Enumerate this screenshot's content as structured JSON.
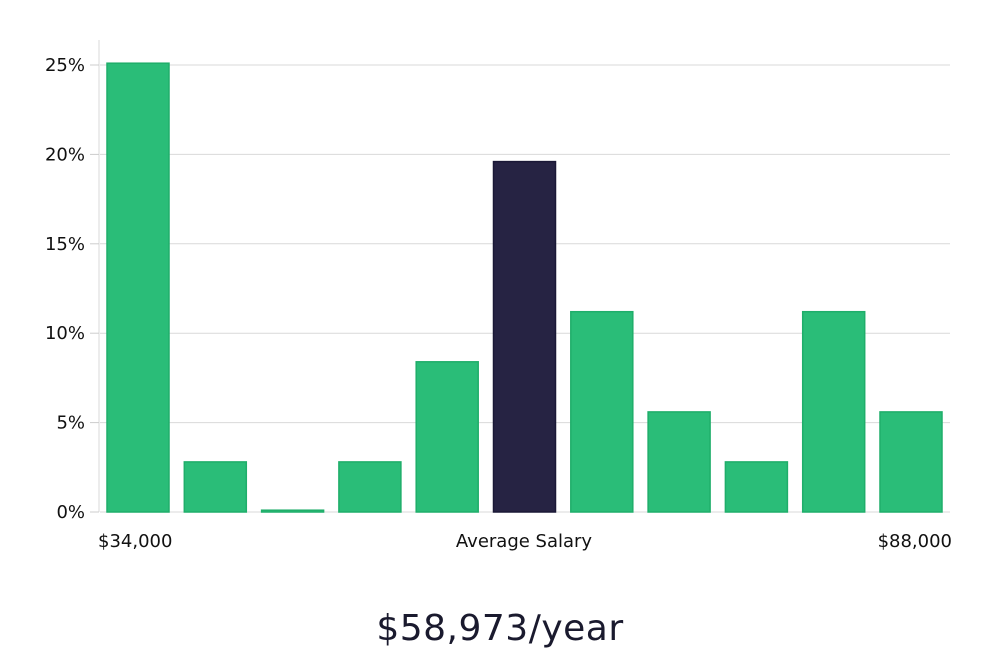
{
  "chart_data": {
    "type": "bar",
    "title": "",
    "xlabel": "Average Salary",
    "ylabel": "",
    "ylim": [
      0,
      25
    ],
    "yticks": [
      0,
      5,
      10,
      15,
      20,
      25
    ],
    "ytick_suffix": "%",
    "x_min_label": "$34,000",
    "x_max_label": "$88,000",
    "values": [
      25.1,
      2.8,
      0.1,
      2.8,
      8.4,
      19.6,
      11.2,
      5.6,
      2.8,
      11.2,
      5.6
    ],
    "highlight_index": 5,
    "colors": {
      "bar": "#2abd78",
      "bar_edge": "#1fae6a",
      "highlight": "#262343",
      "grid": "#d9d9d9"
    }
  },
  "summary": {
    "salary_text": "$58,973/year"
  }
}
